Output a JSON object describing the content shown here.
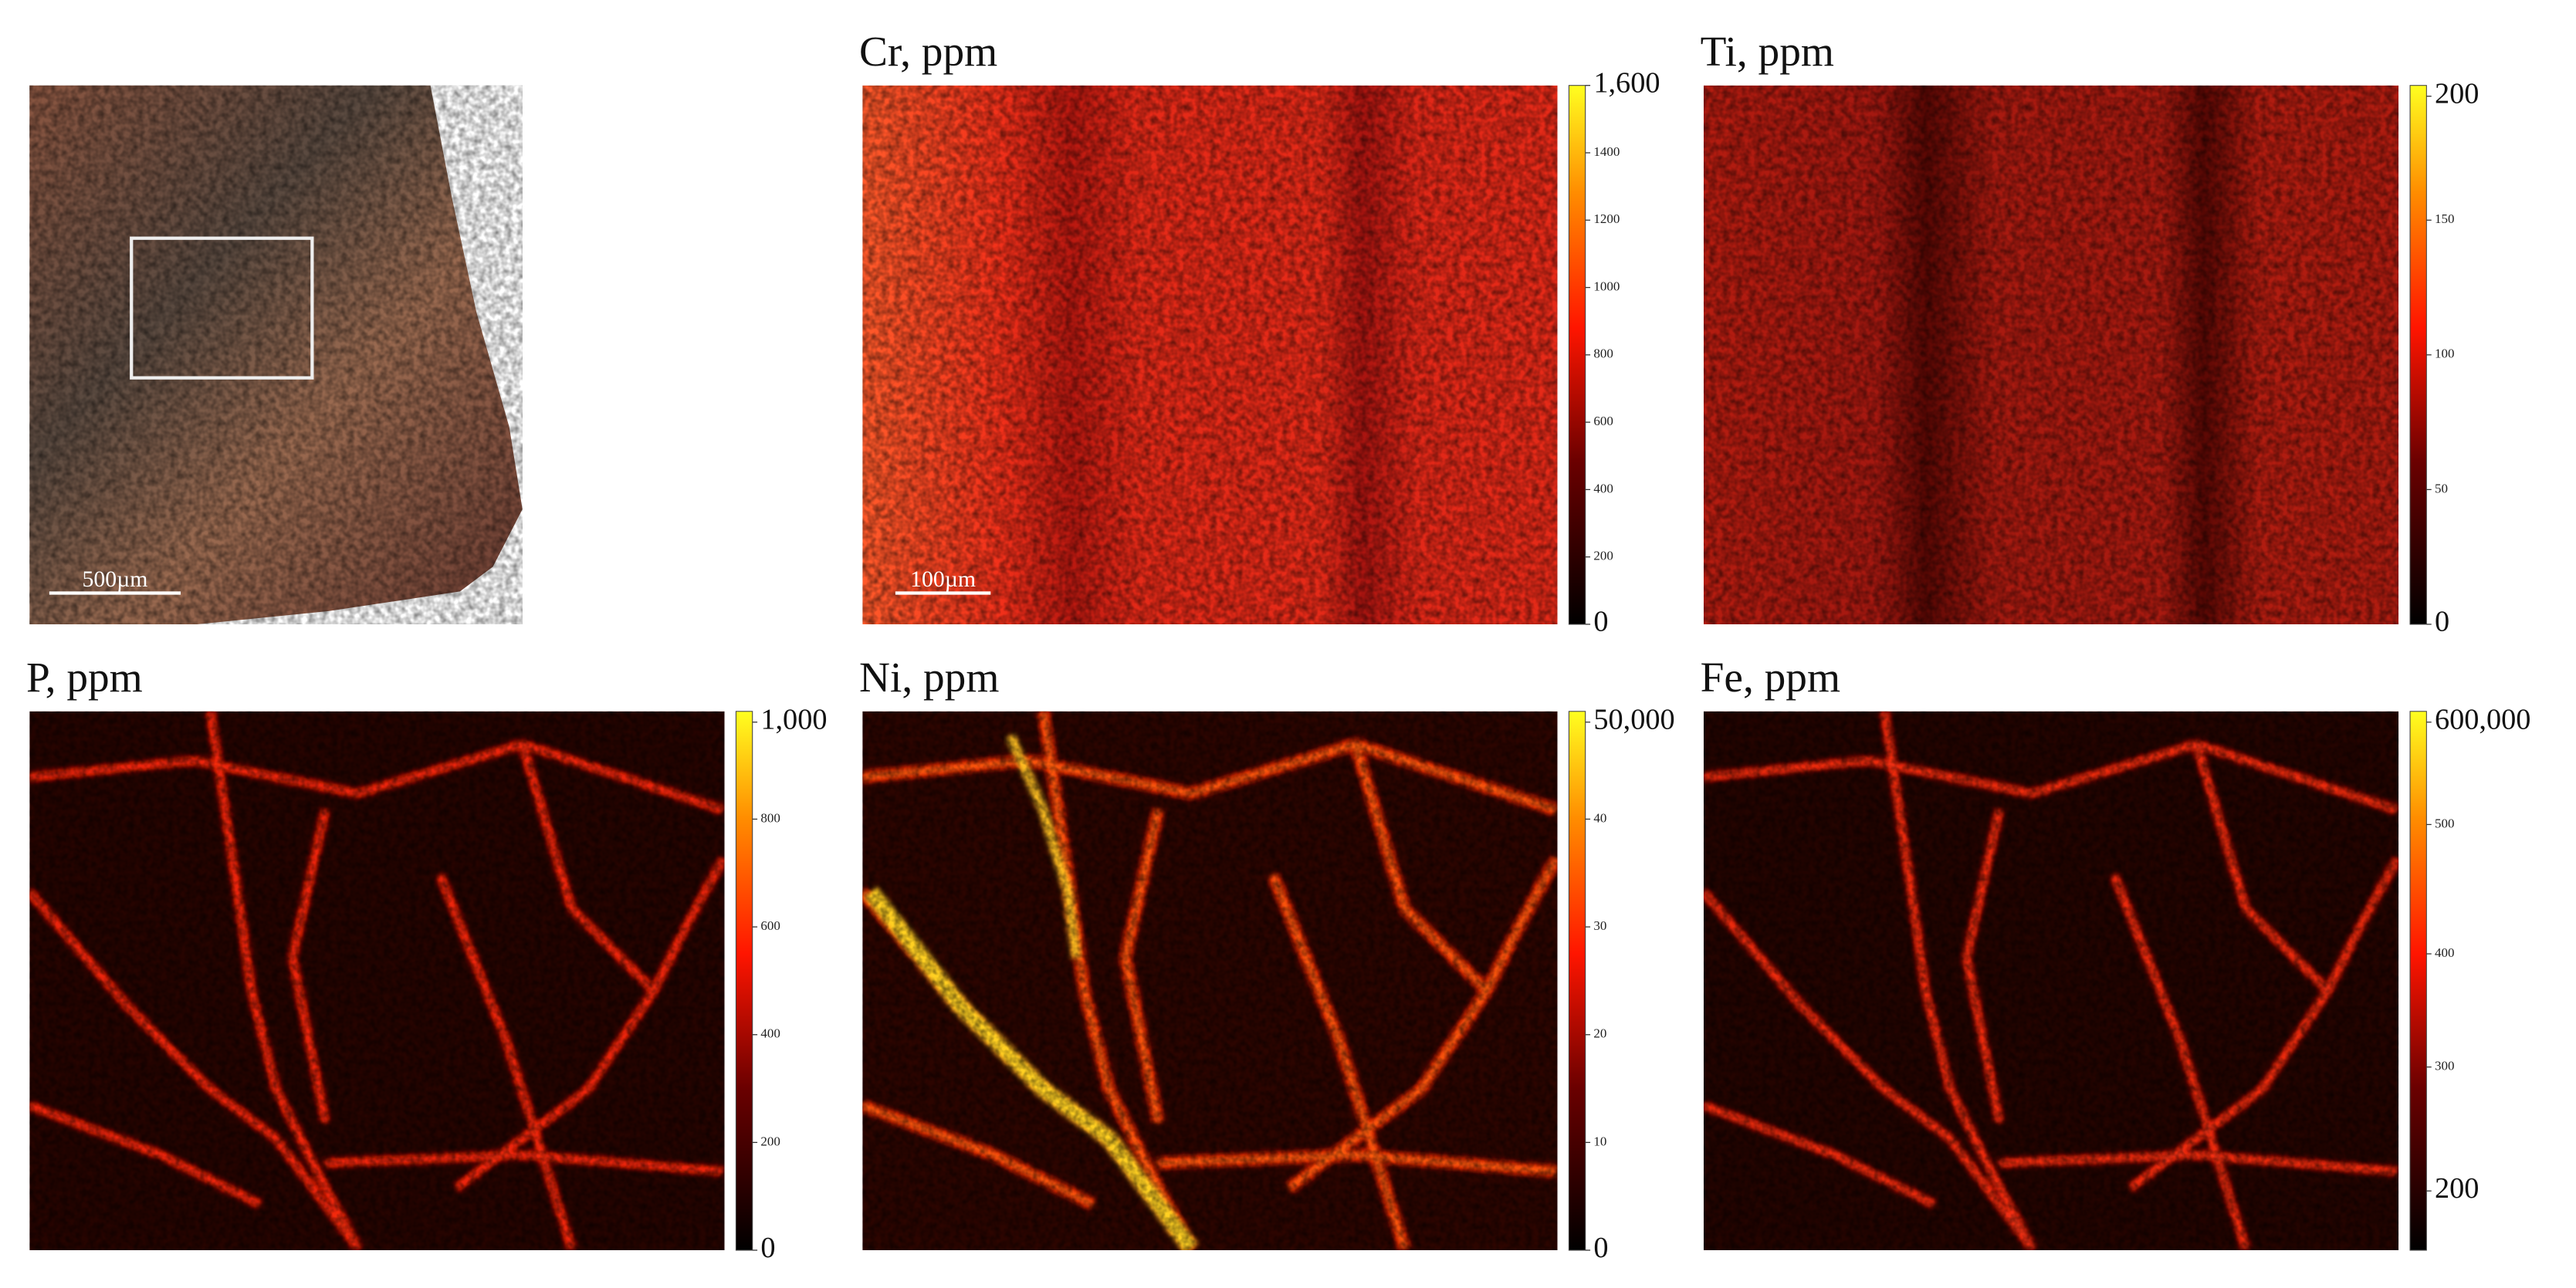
{
  "photo": {
    "scale_bar": "500µm"
  },
  "panels": [
    {
      "title": "Cr, ppm",
      "colorbar_labels": [
        "1,600",
        "1400",
        "1200",
        "1000",
        "800",
        "600",
        "400",
        "200",
        "0"
      ],
      "scale_bar": "100µm"
    },
    {
      "title": "Ti, ppm",
      "colorbar_labels": [
        "200",
        "150",
        "100",
        "50",
        "0"
      ]
    },
    {
      "title": "P, ppm",
      "colorbar_labels": [
        "1,000",
        "800",
        "600",
        "400",
        "200",
        "0"
      ]
    },
    {
      "title": "Ni, ppm",
      "colorbar_labels": [
        "50,000",
        "40",
        "30",
        "20",
        "10",
        "0"
      ]
    },
    {
      "title": "Fe, ppm",
      "colorbar_labels": [
        "600,000",
        "500",
        "400",
        "300",
        "200"
      ]
    }
  ]
}
